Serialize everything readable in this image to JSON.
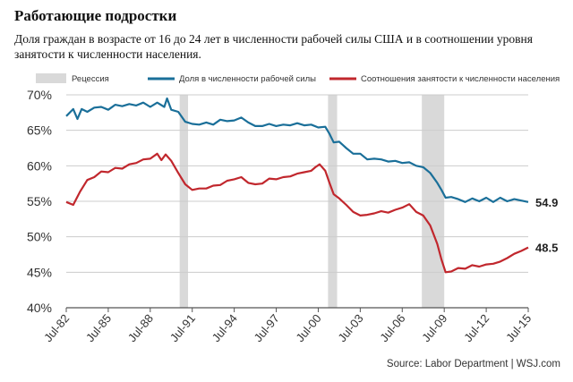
{
  "title": "Работающие подростки",
  "subtitle": "Доля граждан в возрасте от 16 до 24 лет в численности рабочей силы США и в соотношении уровня занятости к численности населения.",
  "source": "Source: Labor Department  |  WSJ.com",
  "chart_data": {
    "type": "line",
    "title": "Работающие подростки",
    "xlabel": "",
    "ylabel": "",
    "ylim": [
      40,
      70
    ],
    "xlim": [
      1982.5,
      2015.5
    ],
    "yticks": [
      40,
      45,
      50,
      55,
      60,
      65,
      70
    ],
    "ytick_labels": [
      "40%",
      "45%",
      "50%",
      "55%",
      "60%",
      "65%",
      "70%"
    ],
    "xticks": [
      1982.5,
      1985.5,
      1988.5,
      1991.5,
      1994.5,
      1997.5,
      2000.5,
      2003.5,
      2006.5,
      2009.5,
      2012.5,
      2015.5
    ],
    "xtick_labels": [
      "Jul-82",
      "Jul-85",
      "Jul-88",
      "Jul-91",
      "Jul-94",
      "Jul-97",
      "Jul-00",
      "Jul-03",
      "Jul-06",
      "Jul-09",
      "Jul-12",
      "Jul-15"
    ],
    "recessions": [
      [
        1990.6,
        1991.2
      ],
      [
        2001.2,
        2001.85
      ],
      [
        2007.9,
        2009.5
      ]
    ],
    "legend": {
      "recession": "Рецессия",
      "position": "top"
    },
    "series": [
      {
        "name": "Доля в численности рабочей силы",
        "color": "#1a6f99",
        "end_label": "54.9",
        "x": [
          1982.5,
          1983.0,
          1983.3,
          1983.6,
          1984.0,
          1984.5,
          1985.0,
          1985.5,
          1986.0,
          1986.5,
          1987.0,
          1987.5,
          1988.0,
          1988.5,
          1989.0,
          1989.5,
          1989.7,
          1990.0,
          1990.5,
          1991.0,
          1991.5,
          1992.0,
          1992.5,
          1993.0,
          1993.5,
          1994.0,
          1994.5,
          1995.0,
          1995.5,
          1996.0,
          1996.5,
          1997.0,
          1997.5,
          1998.0,
          1998.5,
          1999.0,
          1999.5,
          2000.0,
          2000.5,
          2001.0,
          2001.3,
          2001.6,
          2002.0,
          2002.5,
          2003.0,
          2003.5,
          2004.0,
          2004.5,
          2005.0,
          2005.5,
          2006.0,
          2006.5,
          2007.0,
          2007.5,
          2008.0,
          2008.5,
          2009.0,
          2009.3,
          2009.6,
          2010.0,
          2010.5,
          2011.0,
          2011.5,
          2012.0,
          2012.5,
          2013.0,
          2013.5,
          2014.0,
          2014.5,
          2015.0,
          2015.5
        ],
        "values": [
          67.0,
          68.0,
          66.6,
          68.0,
          67.6,
          68.2,
          68.3,
          67.9,
          68.6,
          68.4,
          68.7,
          68.5,
          68.9,
          68.3,
          68.9,
          68.3,
          69.5,
          67.9,
          67.6,
          66.2,
          65.9,
          65.8,
          66.1,
          65.8,
          66.5,
          66.3,
          66.4,
          66.8,
          66.1,
          65.6,
          65.6,
          65.9,
          65.6,
          65.8,
          65.7,
          66.0,
          65.7,
          65.8,
          65.4,
          65.5,
          64.5,
          63.3,
          63.4,
          62.5,
          61.7,
          61.7,
          60.9,
          61.0,
          60.9,
          60.6,
          60.7,
          60.4,
          60.5,
          60.0,
          59.8,
          59.0,
          57.6,
          56.6,
          55.5,
          55.6,
          55.3,
          54.9,
          55.4,
          55.0,
          55.5,
          54.9,
          55.5,
          55.0,
          55.3,
          55.1,
          54.9
        ]
      },
      {
        "name": "Соотношения занятости к численности населения",
        "color": "#c1272d",
        "end_label": "48.5",
        "x": [
          1982.5,
          1983.0,
          1983.5,
          1984.0,
          1984.5,
          1985.0,
          1985.5,
          1986.0,
          1986.5,
          1987.0,
          1987.5,
          1988.0,
          1988.5,
          1989.0,
          1989.3,
          1989.6,
          1990.0,
          1990.5,
          1991.0,
          1991.5,
          1992.0,
          1992.5,
          1993.0,
          1993.5,
          1994.0,
          1994.5,
          1995.0,
          1995.5,
          1996.0,
          1996.5,
          1997.0,
          1997.5,
          1998.0,
          1998.5,
          1999.0,
          1999.5,
          2000.0,
          2000.3,
          2000.6,
          2001.0,
          2001.3,
          2001.6,
          2002.0,
          2002.5,
          2003.0,
          2003.5,
          2004.0,
          2004.5,
          2005.0,
          2005.5,
          2006.0,
          2006.5,
          2007.0,
          2007.5,
          2008.0,
          2008.5,
          2009.0,
          2009.3,
          2009.6,
          2010.0,
          2010.5,
          2011.0,
          2011.5,
          2012.0,
          2012.5,
          2013.0,
          2013.5,
          2014.0,
          2014.5,
          2015.0,
          2015.5
        ],
        "values": [
          54.9,
          54.5,
          56.4,
          58.0,
          58.4,
          59.2,
          59.1,
          59.7,
          59.6,
          60.2,
          60.4,
          60.9,
          61.0,
          61.7,
          60.8,
          61.6,
          60.7,
          59.0,
          57.4,
          56.6,
          56.8,
          56.8,
          57.2,
          57.3,
          57.9,
          58.1,
          58.4,
          57.6,
          57.4,
          57.5,
          58.2,
          58.1,
          58.4,
          58.5,
          58.9,
          59.1,
          59.3,
          59.8,
          60.2,
          59.3,
          57.6,
          56.0,
          55.4,
          54.5,
          53.5,
          53.0,
          53.1,
          53.3,
          53.6,
          53.4,
          53.8,
          54.1,
          54.6,
          53.5,
          53.0,
          51.6,
          49.0,
          46.8,
          45.0,
          45.1,
          45.6,
          45.5,
          46.0,
          45.8,
          46.1,
          46.2,
          46.5,
          47.0,
          47.6,
          48.0,
          48.5
        ]
      }
    ]
  }
}
